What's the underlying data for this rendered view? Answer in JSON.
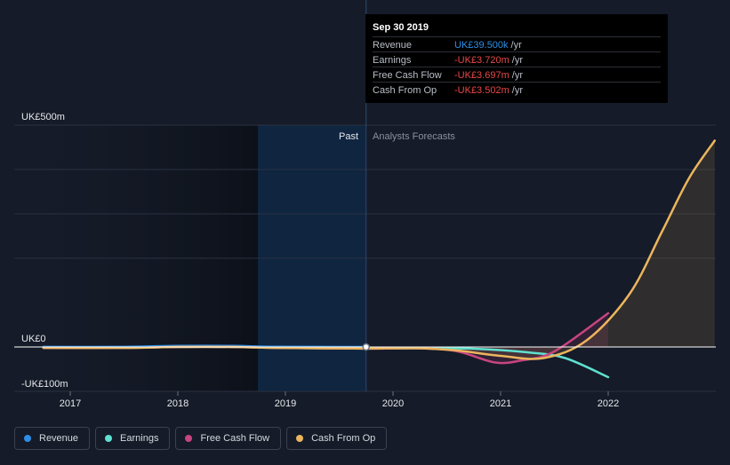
{
  "chart_data": {
    "type": "line",
    "x_ticks": [
      "2017",
      "2018",
      "2019",
      "2020",
      "2021",
      "2022"
    ],
    "ylim": [
      -100,
      500
    ],
    "y_tick_labels": [
      {
        "value": 500,
        "label": "UK£500m"
      },
      {
        "value": 0,
        "label": "UK£0"
      },
      {
        "value": -100,
        "label": "-UK£100m"
      }
    ],
    "grid": true,
    "past_label": "Past",
    "forecast_label": "Analysts Forecasts",
    "split_date": 2019.75,
    "series": [
      {
        "name": "Revenue",
        "color": "#2e8ee6",
        "points": [
          [
            2016.75,
            0.2
          ],
          [
            2017.5,
            0.2
          ],
          [
            2018.0,
            2.5
          ],
          [
            2018.5,
            2.5
          ],
          [
            2018.9,
            0.5
          ],
          [
            2019.75,
            0.04
          ]
        ]
      },
      {
        "name": "Earnings",
        "color": "#5fe0d0",
        "points": [
          [
            2016.75,
            -2
          ],
          [
            2017.5,
            -2
          ],
          [
            2018.0,
            0
          ],
          [
            2018.5,
            0
          ],
          [
            2018.9,
            -2
          ],
          [
            2019.75,
            -3.7
          ],
          [
            2020.25,
            -3
          ],
          [
            2020.75,
            -4
          ],
          [
            2021.25,
            -12
          ],
          [
            2021.6,
            -25
          ],
          [
            2022.0,
            -68
          ]
        ]
      },
      {
        "name": "Free Cash Flow",
        "color": "#c8457f",
        "points": [
          [
            2016.75,
            -2
          ],
          [
            2017.5,
            -2
          ],
          [
            2018.0,
            0
          ],
          [
            2018.5,
            0
          ],
          [
            2018.9,
            -2
          ],
          [
            2019.75,
            -3.7
          ],
          [
            2020.25,
            -3
          ],
          [
            2020.6,
            -10
          ],
          [
            2020.95,
            -35
          ],
          [
            2021.2,
            -30
          ],
          [
            2021.5,
            -10
          ],
          [
            2022.0,
            76
          ]
        ]
      },
      {
        "name": "Cash From Op",
        "color": "#ebb55e",
        "points": [
          [
            2016.75,
            -2
          ],
          [
            2017.5,
            -2
          ],
          [
            2018.0,
            0
          ],
          [
            2018.5,
            0
          ],
          [
            2018.9,
            -2
          ],
          [
            2019.75,
            -3.5
          ],
          [
            2020.25,
            -3
          ],
          [
            2020.6,
            -8
          ],
          [
            2021.0,
            -20
          ],
          [
            2021.4,
            -25
          ],
          [
            2021.8,
            15
          ],
          [
            2022.2,
            120
          ],
          [
            2022.5,
            260
          ],
          [
            2022.75,
            380
          ],
          [
            2022.99,
            465
          ]
        ]
      }
    ]
  },
  "tooltip": {
    "date": "Sep 30 2019",
    "rows": [
      {
        "label": "Revenue",
        "value": "UK£39.500k",
        "unit": "/yr",
        "color": "#2e8ee6"
      },
      {
        "label": "Earnings",
        "value": "-UK£3.720m",
        "unit": "/yr",
        "color": "#e84848"
      },
      {
        "label": "Free Cash Flow",
        "value": "-UK£3.697m",
        "unit": "/yr",
        "color": "#e84848"
      },
      {
        "label": "Cash From Op",
        "value": "-UK£3.502m",
        "unit": "/yr",
        "color": "#e84848"
      }
    ]
  },
  "legend": [
    {
      "label": "Revenue",
      "color": "#2e8ee6"
    },
    {
      "label": "Earnings",
      "color": "#5fe0d0"
    },
    {
      "label": "Free Cash Flow",
      "color": "#c8457f"
    },
    {
      "label": "Cash From Op",
      "color": "#ebb55e"
    }
  ]
}
